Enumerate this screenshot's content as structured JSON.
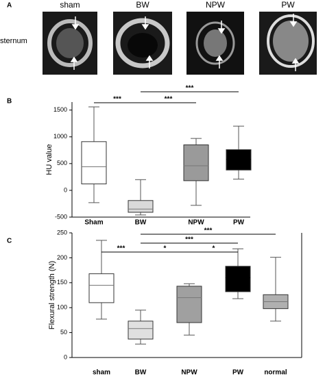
{
  "panel_a": {
    "label": "A",
    "row_label": "sternum",
    "images": [
      "sham",
      "BW",
      "NPW",
      "PW"
    ]
  },
  "chart_data": [
    {
      "type": "box",
      "panel_label": "B",
      "y_label": "HU value",
      "categories": [
        "Sham",
        "BW",
        "NPW",
        "PW"
      ],
      "colors": [
        "#ffffff",
        "#d9d9d9",
        "#9a9a9a",
        "#000000"
      ],
      "min": [
        -230,
        -460,
        -280,
        210
      ],
      "q1": [
        120,
        -410,
        180,
        380
      ],
      "median": [
        440,
        -350,
        460,
        580
      ],
      "q3": [
        910,
        -190,
        850,
        760
      ],
      "max": [
        1560,
        200,
        970,
        1200
      ],
      "ylim": [
        -500,
        1650
      ],
      "yticks": [
        -500,
        0,
        500,
        1000,
        1500
      ],
      "frame": false,
      "annotations": [
        {
          "between": [
            "Sham",
            "BW"
          ],
          "label": "***"
        },
        {
          "between": [
            "BW",
            "NPW"
          ],
          "label": "***"
        },
        {
          "between": [
            "BW",
            "PW"
          ],
          "label": "***"
        }
      ]
    },
    {
      "type": "box",
      "panel_label": "C",
      "y_label": "Flexural strength (N)",
      "categories": [
        "sham",
        "BW",
        "NPW",
        "PW",
        "normal"
      ],
      "colors": [
        "#ffffff",
        "#e0e0e0",
        "#a0a0a0",
        "#000000",
        "#b0b0b0"
      ],
      "min": [
        77,
        27,
        45,
        118,
        73
      ],
      "q1": [
        110,
        37,
        70,
        132,
        98
      ],
      "median": [
        145,
        58,
        120,
        160,
        112
      ],
      "q3": [
        168,
        73,
        143,
        183,
        126
      ],
      "max": [
        235,
        95,
        148,
        218,
        201
      ],
      "ylim": [
        0,
        250
      ],
      "yticks": [
        0,
        50,
        100,
        150,
        200,
        250
      ],
      "frame": true,
      "annotations": [
        {
          "between": [
            "BW",
            "NPW"
          ],
          "label": "*"
        },
        {
          "between": [
            "NPW",
            "PW"
          ],
          "label": "*"
        },
        {
          "between": [
            "BW",
            "PW"
          ],
          "label": "***"
        },
        {
          "between": [
            "sham",
            "BW"
          ],
          "label": "***"
        },
        {
          "between": [
            "BW",
            "normal"
          ],
          "label": "***"
        }
      ]
    }
  ]
}
